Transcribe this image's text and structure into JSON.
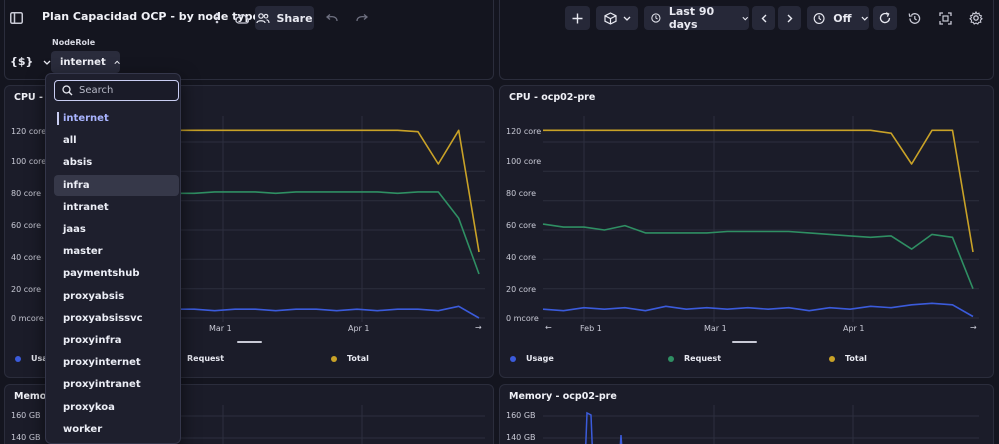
{
  "header": {
    "title": "Plan Capacidad OCP - by node type",
    "share_label": "Share",
    "timeframe_label": "Last 90 days",
    "refresh_label": "Off"
  },
  "variable": {
    "label": "NodeRole",
    "prefix": "{$}",
    "value": "internet"
  },
  "dropdown": {
    "search_placeholder": "Search",
    "options": [
      "internet",
      "all",
      "absis",
      "infra",
      "intranet",
      "jaas",
      "master",
      "paymentshub",
      "proxyabsis",
      "proxyabsissvc",
      "proxyinfra",
      "proxyinternet",
      "proxyintranet",
      "proxykoa",
      "worker"
    ],
    "selected": "internet",
    "highlighted": "infra"
  },
  "tiles": {
    "cpu_left": {
      "title": "CPU - ocp",
      "legend": [
        "Usage",
        "Request",
        "Total"
      ]
    },
    "cpu_right": {
      "title": "CPU - ocp02-pre",
      "legend": [
        "Usage",
        "Request",
        "Total"
      ]
    },
    "mem_left": {
      "title": "Memory -"
    },
    "mem_right": {
      "title": "Memory - ocp02-pre"
    }
  },
  "colors": {
    "usage": "#3b5bdb",
    "request": "#2f8f63",
    "total": "#c9a227",
    "accent": "#a9b4ff"
  },
  "chart_data": [
    {
      "type": "line",
      "title": "CPU - ocp",
      "yticks": [
        "120 core",
        "100 core",
        "80 core",
        "60 core",
        "40 core",
        "20 core",
        "0 mcore"
      ],
      "xticks": [
        "Mar 1",
        "Apr 1"
      ],
      "ylim": [
        0,
        135
      ],
      "series": [
        {
          "name": "Usage",
          "values": [
            5,
            5,
            6,
            5,
            6,
            5,
            6,
            6,
            5,
            6,
            6,
            5,
            6,
            6,
            5,
            6,
            5,
            6,
            6,
            5,
            8,
            0
          ]
        },
        {
          "name": "Request",
          "values": [
            82,
            80,
            82,
            83,
            84,
            84,
            85,
            85,
            86,
            86,
            86,
            85,
            86,
            86,
            86,
            86,
            86,
            85,
            86,
            86,
            68,
            30
          ]
        },
        {
          "name": "Total",
          "values": [
            128,
            128,
            128,
            128,
            128,
            128,
            128,
            128,
            128,
            128,
            128,
            128,
            128,
            128,
            128,
            128,
            128,
            128,
            127,
            105,
            128,
            45
          ]
        }
      ]
    },
    {
      "type": "line",
      "title": "CPU - ocp02-pre",
      "yticks": [
        "120 core",
        "100 core",
        "80 core",
        "60 core",
        "40 core",
        "20 core",
        "0 mcore"
      ],
      "xticks": [
        "Feb 1",
        "Mar 1",
        "Apr 1"
      ],
      "ylim": [
        0,
        135
      ],
      "series": [
        {
          "name": "Usage",
          "values": [
            6,
            5,
            7,
            6,
            7,
            5,
            8,
            6,
            7,
            6,
            7,
            6,
            7,
            5,
            7,
            6,
            8,
            7,
            9,
            10,
            9,
            1
          ]
        },
        {
          "name": "Request",
          "values": [
            64,
            62,
            62,
            60,
            63,
            58,
            58,
            58,
            58,
            59,
            59,
            59,
            59,
            58,
            57,
            56,
            55,
            56,
            47,
            57,
            55,
            20
          ]
        },
        {
          "name": "Total",
          "values": [
            128,
            128,
            128,
            128,
            128,
            128,
            128,
            128,
            128,
            128,
            128,
            128,
            128,
            128,
            128,
            128,
            128,
            126,
            105,
            128,
            128,
            45
          ]
        }
      ]
    },
    {
      "type": "line",
      "title": "Memory - ocp02-pre",
      "yticks": [
        "160 GB",
        "140 GB"
      ],
      "series": []
    }
  ]
}
